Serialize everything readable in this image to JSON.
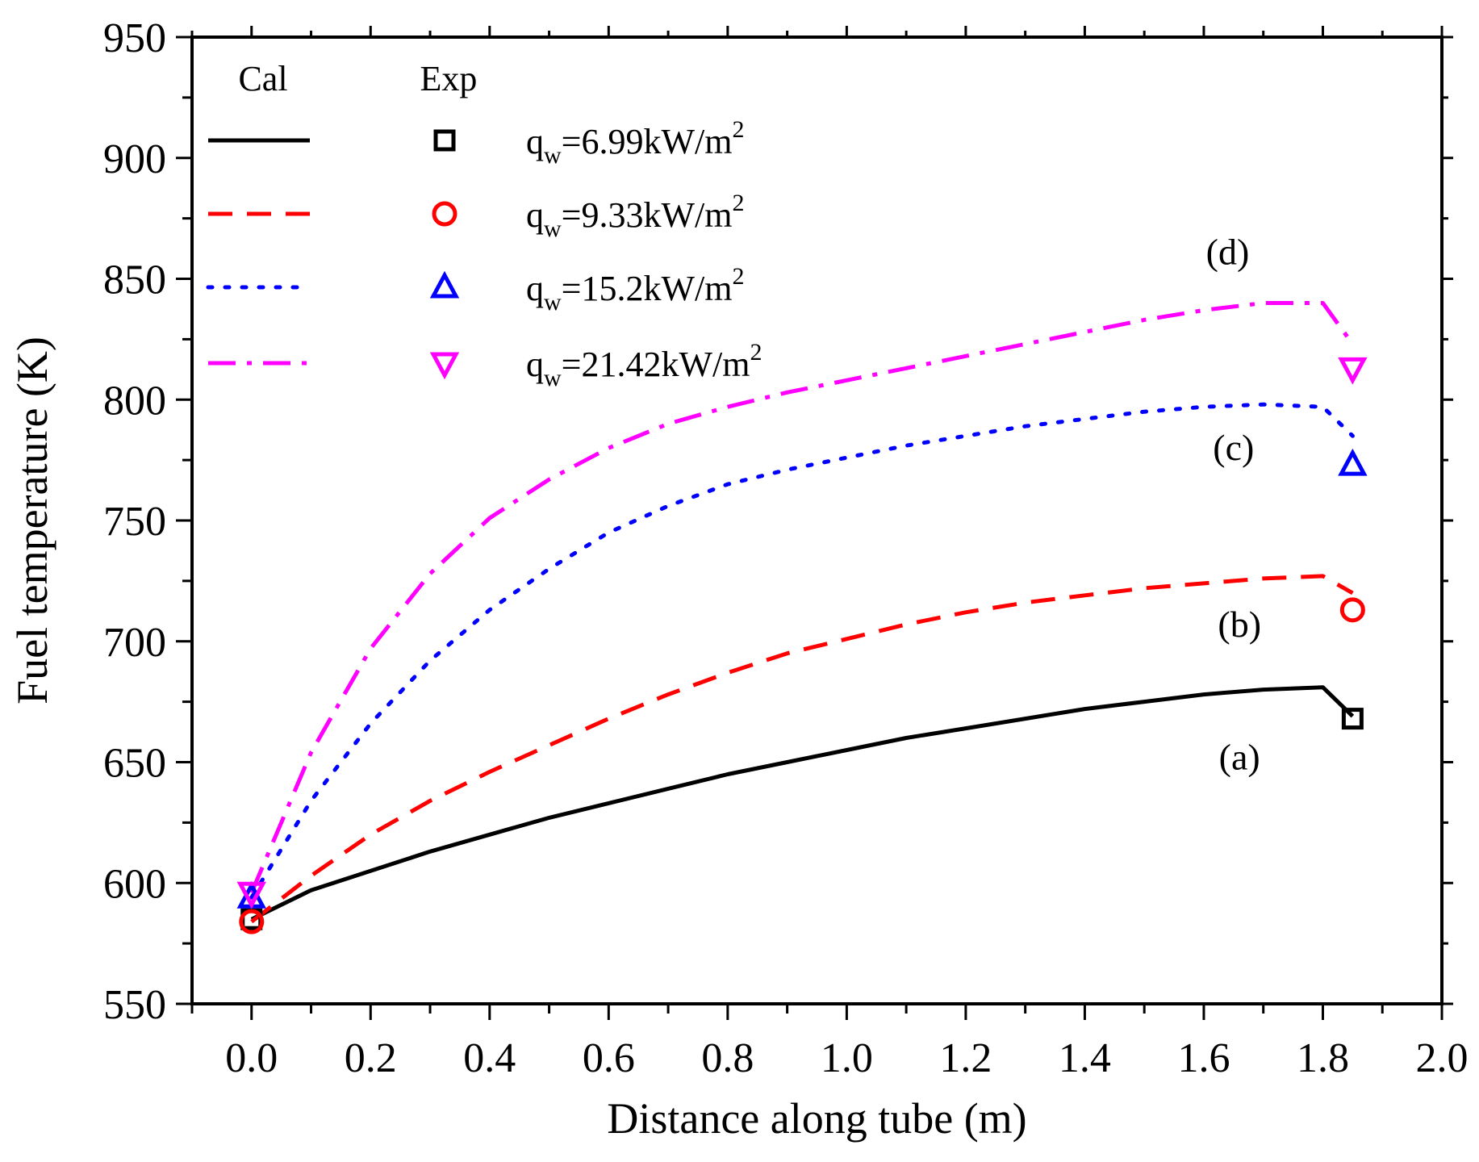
{
  "chart_data": {
    "type": "line",
    "title": "",
    "xlabel": "Distance along tube (m)",
    "ylabel": "Fuel temperature (K)",
    "xlim": [
      -0.1,
      2.0
    ],
    "ylim": [
      550,
      950
    ],
    "xticks": [
      "0.0",
      "0.2",
      "0.4",
      "0.6",
      "0.8",
      "1.0",
      "1.2",
      "1.4",
      "1.6",
      "1.8",
      "2.0"
    ],
    "yticks": [
      "550",
      "600",
      "650",
      "700",
      "750",
      "800",
      "850",
      "900",
      "950"
    ],
    "legend": {
      "position": "top-left",
      "col_cal": "Cal",
      "col_exp": "Exp"
    },
    "series": [
      {
        "name": "q_w=6.99kW/m^2",
        "label_main": "q",
        "label_sub": "w",
        "label_value": "=6.99kW/m",
        "label_sup": "2",
        "curve_label": "(a)",
        "color": "#000000",
        "dash": "solid",
        "marker": "square",
        "calc": {
          "x": [
            0.0,
            0.1,
            0.2,
            0.3,
            0.4,
            0.5,
            0.6,
            0.7,
            0.8,
            0.9,
            1.0,
            1.1,
            1.2,
            1.3,
            1.4,
            1.5,
            1.6,
            1.7,
            1.8,
            1.85
          ],
          "y": [
            585,
            597,
            605,
            613,
            620,
            627,
            633,
            639,
            645,
            650,
            655,
            660,
            664,
            668,
            672,
            675,
            678,
            680,
            681,
            669
          ]
        },
        "exp": {
          "x": [
            0.0,
            1.85
          ],
          "y": [
            585,
            668
          ]
        }
      },
      {
        "name": "q_w=9.33kW/m^2",
        "label_main": "q",
        "label_sub": "w",
        "label_value": "=9.33kW/m",
        "label_sup": "2",
        "curve_label": "(b)",
        "color": "#ff0000",
        "dash": "dash",
        "marker": "circle",
        "calc": {
          "x": [
            0.0,
            0.1,
            0.2,
            0.3,
            0.4,
            0.5,
            0.6,
            0.7,
            0.8,
            0.9,
            1.0,
            1.1,
            1.2,
            1.3,
            1.4,
            1.5,
            1.6,
            1.7,
            1.8,
            1.85
          ],
          "y": [
            584,
            603,
            620,
            634,
            646,
            657,
            668,
            678,
            687,
            695,
            701,
            707,
            712,
            716,
            719,
            722,
            724,
            726,
            727,
            720
          ]
        },
        "exp": {
          "x": [
            0.0,
            1.85
          ],
          "y": [
            584,
            713
          ]
        }
      },
      {
        "name": "q_w=15.2kW/m^2",
        "label_main": "q",
        "label_sub": "w",
        "label_value": "=15.2kW/m",
        "label_sup": "2",
        "curve_label": "(c)",
        "color": "#0000ff",
        "dash": "dot",
        "marker": "triangle-up",
        "calc": {
          "x": [
            0.0,
            0.1,
            0.2,
            0.3,
            0.4,
            0.5,
            0.6,
            0.7,
            0.8,
            0.9,
            1.0,
            1.1,
            1.2,
            1.3,
            1.4,
            1.5,
            1.6,
            1.7,
            1.8,
            1.85
          ],
          "y": [
            594,
            634,
            666,
            692,
            713,
            730,
            745,
            756,
            765,
            771,
            776,
            781,
            785,
            789,
            792,
            795,
            797,
            798,
            797,
            785
          ]
        },
        "exp": {
          "x": [
            0.0,
            1.85
          ],
          "y": [
            594,
            773
          ]
        }
      },
      {
        "name": "q_w=21.42kW/m^2",
        "label_main": "q",
        "label_sub": "w",
        "label_value": "=21.42kW/m",
        "label_sup": "2",
        "curve_label": "(d)",
        "color": "#ff00ff",
        "dash": "dashdot",
        "marker": "triangle-down",
        "calc": {
          "x": [
            0.0,
            0.1,
            0.2,
            0.3,
            0.4,
            0.5,
            0.6,
            0.7,
            0.8,
            0.9,
            1.0,
            1.1,
            1.2,
            1.3,
            1.4,
            1.5,
            1.6,
            1.7,
            1.8,
            1.85
          ],
          "y": [
            596,
            654,
            697,
            728,
            751,
            767,
            780,
            790,
            797,
            803,
            808,
            813,
            818,
            823,
            828,
            833,
            837,
            840,
            840,
            823
          ]
        },
        "exp": {
          "x": [
            0.0,
            1.85
          ],
          "y": [
            596,
            813
          ]
        }
      }
    ],
    "curve_label_positions": [
      {
        "series": 0,
        "x": 1.66,
        "y": 647
      },
      {
        "series": 1,
        "x": 1.66,
        "y": 702
      },
      {
        "series": 2,
        "x": 1.65,
        "y": 775
      },
      {
        "series": 3,
        "x": 1.64,
        "y": 856
      }
    ]
  }
}
